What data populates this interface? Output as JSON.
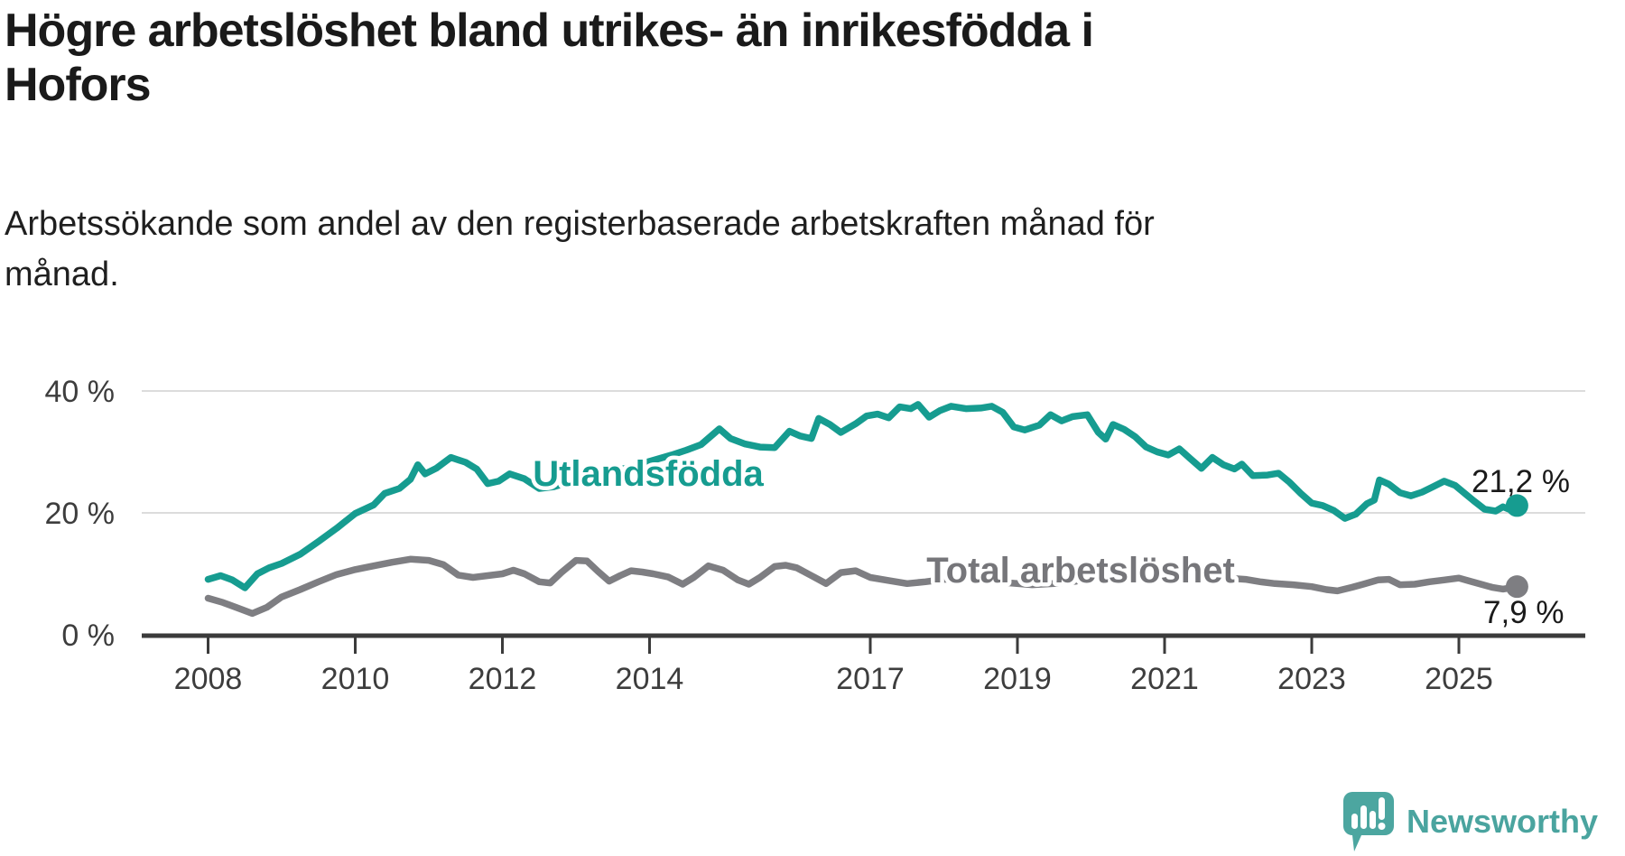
{
  "header": {
    "title_lines": [
      "Högre arbetslöshet bland utrikes- än inrikesfödda i",
      "Hofors"
    ],
    "subtitle_lines": [
      "Arbetssökande som andel av den registerbaserade arbetskraften månad för",
      "månad."
    ]
  },
  "footer": {
    "brand": "Newsworthy",
    "logo_icon": "newsworthy-speech-bubble-bar-chart"
  },
  "colors": {
    "utlandsfodda": "#169c90",
    "total": "#7e7e82",
    "total_label": "#76767a",
    "gridline": "#dcdcdc",
    "axis": "#3b3b3b",
    "logo_teal": "#4ca6a0"
  },
  "chart_data": {
    "type": "line",
    "unit": "%",
    "grid": "horizontal-only",
    "xlim": [
      2007.5,
      2026.2
    ],
    "ylim": [
      0,
      42
    ],
    "x_ticks": [
      2008,
      2010,
      2012,
      2014,
      2017,
      2019,
      2021,
      2023,
      2025
    ],
    "y_ticks": [
      {
        "value": 0,
        "label": "0 %"
      },
      {
        "value": 20,
        "label": "20 %"
      },
      {
        "value": 40,
        "label": "40 %"
      }
    ],
    "series": [
      {
        "name": "Utlandsfödda",
        "color": "#169c90",
        "end_label": "21,2 %",
        "last_value": 21.2,
        "points": [
          [
            2008.0,
            9.1
          ],
          [
            2008.17,
            9.7
          ],
          [
            2008.33,
            9.0
          ],
          [
            2008.5,
            7.7
          ],
          [
            2008.67,
            10.0
          ],
          [
            2008.83,
            11.0
          ],
          [
            2009.0,
            11.7
          ],
          [
            2009.25,
            13.2
          ],
          [
            2009.5,
            15.3
          ],
          [
            2009.75,
            17.5
          ],
          [
            2010.0,
            19.9
          ],
          [
            2010.25,
            21.3
          ],
          [
            2010.4,
            23.2
          ],
          [
            2010.6,
            24.0
          ],
          [
            2010.75,
            25.5
          ],
          [
            2010.85,
            27.9
          ],
          [
            2010.95,
            26.4
          ],
          [
            2011.1,
            27.3
          ],
          [
            2011.3,
            29.1
          ],
          [
            2011.5,
            28.3
          ],
          [
            2011.65,
            27.2
          ],
          [
            2011.8,
            24.8
          ],
          [
            2011.95,
            25.2
          ],
          [
            2012.1,
            26.4
          ],
          [
            2012.3,
            25.6
          ],
          [
            2012.5,
            24.0
          ],
          [
            2012.7,
            24.3
          ],
          [
            2012.9,
            25.0
          ],
          [
            2013.1,
            25.5
          ],
          [
            2013.3,
            26.1
          ],
          [
            2013.5,
            26.8
          ],
          [
            2013.7,
            27.4
          ],
          [
            2013.9,
            28.1
          ],
          [
            2014.1,
            28.8
          ],
          [
            2014.3,
            29.5
          ],
          [
            2014.5,
            30.3
          ],
          [
            2014.7,
            31.2
          ],
          [
            2014.95,
            33.8
          ],
          [
            2015.1,
            32.2
          ],
          [
            2015.3,
            31.3
          ],
          [
            2015.5,
            30.8
          ],
          [
            2015.7,
            30.7
          ],
          [
            2015.9,
            33.4
          ],
          [
            2016.05,
            32.6
          ],
          [
            2016.2,
            32.2
          ],
          [
            2016.3,
            35.5
          ],
          [
            2016.45,
            34.5
          ],
          [
            2016.6,
            33.2
          ],
          [
            2016.8,
            34.6
          ],
          [
            2016.95,
            35.9
          ],
          [
            2017.1,
            36.2
          ],
          [
            2017.25,
            35.6
          ],
          [
            2017.4,
            37.4
          ],
          [
            2017.55,
            37.1
          ],
          [
            2017.65,
            37.8
          ],
          [
            2017.8,
            35.7
          ],
          [
            2017.95,
            36.8
          ],
          [
            2018.1,
            37.5
          ],
          [
            2018.3,
            37.1
          ],
          [
            2018.5,
            37.2
          ],
          [
            2018.65,
            37.5
          ],
          [
            2018.8,
            36.5
          ],
          [
            2018.95,
            34.1
          ],
          [
            2019.1,
            33.6
          ],
          [
            2019.3,
            34.4
          ],
          [
            2019.45,
            36.1
          ],
          [
            2019.6,
            35.1
          ],
          [
            2019.75,
            35.8
          ],
          [
            2019.95,
            36.1
          ],
          [
            2020.1,
            33.2
          ],
          [
            2020.2,
            32.1
          ],
          [
            2020.3,
            34.5
          ],
          [
            2020.45,
            33.7
          ],
          [
            2020.6,
            32.5
          ],
          [
            2020.75,
            30.8
          ],
          [
            2020.9,
            30.0
          ],
          [
            2021.05,
            29.5
          ],
          [
            2021.2,
            30.5
          ],
          [
            2021.35,
            28.9
          ],
          [
            2021.5,
            27.3
          ],
          [
            2021.65,
            29.1
          ],
          [
            2021.8,
            27.9
          ],
          [
            2021.95,
            27.2
          ],
          [
            2022.05,
            28.0
          ],
          [
            2022.2,
            26.1
          ],
          [
            2022.4,
            26.2
          ],
          [
            2022.55,
            26.5
          ],
          [
            2022.7,
            25.0
          ],
          [
            2022.85,
            23.2
          ],
          [
            2023.0,
            21.6
          ],
          [
            2023.15,
            21.2
          ],
          [
            2023.3,
            20.4
          ],
          [
            2023.45,
            19.1
          ],
          [
            2023.6,
            19.8
          ],
          [
            2023.75,
            21.5
          ],
          [
            2023.85,
            22.1
          ],
          [
            2023.92,
            25.4
          ],
          [
            2024.05,
            24.7
          ],
          [
            2024.2,
            23.3
          ],
          [
            2024.35,
            22.8
          ],
          [
            2024.5,
            23.4
          ],
          [
            2024.65,
            24.3
          ],
          [
            2024.8,
            25.2
          ],
          [
            2024.95,
            24.5
          ],
          [
            2025.1,
            23.0
          ],
          [
            2025.2,
            22.0
          ],
          [
            2025.35,
            20.6
          ],
          [
            2025.5,
            20.3
          ],
          [
            2025.6,
            21.0
          ],
          [
            2025.7,
            20.5
          ],
          [
            2025.79,
            21.2
          ]
        ]
      },
      {
        "name": "Total arbetslöshet",
        "color": "#7e7e82",
        "end_label": "7,9 %",
        "last_value": 7.9,
        "points": [
          [
            2008.0,
            6.0
          ],
          [
            2008.2,
            5.3
          ],
          [
            2008.4,
            4.4
          ],
          [
            2008.6,
            3.5
          ],
          [
            2008.8,
            4.5
          ],
          [
            2009.0,
            6.2
          ],
          [
            2009.25,
            7.4
          ],
          [
            2009.5,
            8.7
          ],
          [
            2009.75,
            9.9
          ],
          [
            2010.0,
            10.7
          ],
          [
            2010.25,
            11.3
          ],
          [
            2010.5,
            11.9
          ],
          [
            2010.75,
            12.4
          ],
          [
            2011.0,
            12.2
          ],
          [
            2011.2,
            11.5
          ],
          [
            2011.4,
            9.8
          ],
          [
            2011.6,
            9.4
          ],
          [
            2011.8,
            9.7
          ],
          [
            2012.0,
            10.0
          ],
          [
            2012.15,
            10.6
          ],
          [
            2012.3,
            10.0
          ],
          [
            2012.5,
            8.7
          ],
          [
            2012.65,
            8.5
          ],
          [
            2012.8,
            10.2
          ],
          [
            2013.0,
            12.2
          ],
          [
            2013.15,
            12.1
          ],
          [
            2013.3,
            10.4
          ],
          [
            2013.45,
            8.8
          ],
          [
            2013.6,
            9.7
          ],
          [
            2013.75,
            10.5
          ],
          [
            2013.9,
            10.3
          ],
          [
            2014.05,
            10.0
          ],
          [
            2014.25,
            9.5
          ],
          [
            2014.45,
            8.3
          ],
          [
            2014.6,
            9.4
          ],
          [
            2014.8,
            11.3
          ],
          [
            2015.0,
            10.6
          ],
          [
            2015.2,
            9.0
          ],
          [
            2015.35,
            8.3
          ],
          [
            2015.5,
            9.4
          ],
          [
            2015.7,
            11.2
          ],
          [
            2015.85,
            11.4
          ],
          [
            2016.0,
            11.0
          ],
          [
            2016.2,
            9.7
          ],
          [
            2016.4,
            8.4
          ],
          [
            2016.6,
            10.2
          ],
          [
            2016.8,
            10.5
          ],
          [
            2017.0,
            9.4
          ],
          [
            2017.25,
            8.9
          ],
          [
            2017.5,
            8.4
          ],
          [
            2017.75,
            8.7
          ],
          [
            2018.0,
            9.1
          ],
          [
            2018.3,
            9.3
          ],
          [
            2018.6,
            8.9
          ],
          [
            2018.9,
            8.5
          ],
          [
            2019.2,
            8.2
          ],
          [
            2019.5,
            8.4
          ],
          [
            2019.8,
            8.8
          ],
          [
            2020.1,
            9.4
          ],
          [
            2020.35,
            10.9
          ],
          [
            2020.6,
            11.4
          ],
          [
            2020.85,
            11.1
          ],
          [
            2021.1,
            10.6
          ],
          [
            2021.35,
            10.1
          ],
          [
            2021.6,
            9.7
          ],
          [
            2021.85,
            9.3
          ],
          [
            2022.1,
            9.1
          ],
          [
            2022.3,
            8.7
          ],
          [
            2022.5,
            8.4
          ],
          [
            2022.75,
            8.2
          ],
          [
            2023.0,
            7.9
          ],
          [
            2023.2,
            7.4
          ],
          [
            2023.35,
            7.2
          ],
          [
            2023.55,
            7.8
          ],
          [
            2023.7,
            8.3
          ],
          [
            2023.9,
            9.0
          ],
          [
            2024.05,
            9.1
          ],
          [
            2024.2,
            8.2
          ],
          [
            2024.4,
            8.3
          ],
          [
            2024.6,
            8.7
          ],
          [
            2024.8,
            9.0
          ],
          [
            2025.0,
            9.3
          ],
          [
            2025.15,
            8.8
          ],
          [
            2025.3,
            8.3
          ],
          [
            2025.45,
            7.8
          ],
          [
            2025.6,
            7.5
          ],
          [
            2025.7,
            7.7
          ],
          [
            2025.79,
            7.9
          ]
        ]
      }
    ]
  }
}
